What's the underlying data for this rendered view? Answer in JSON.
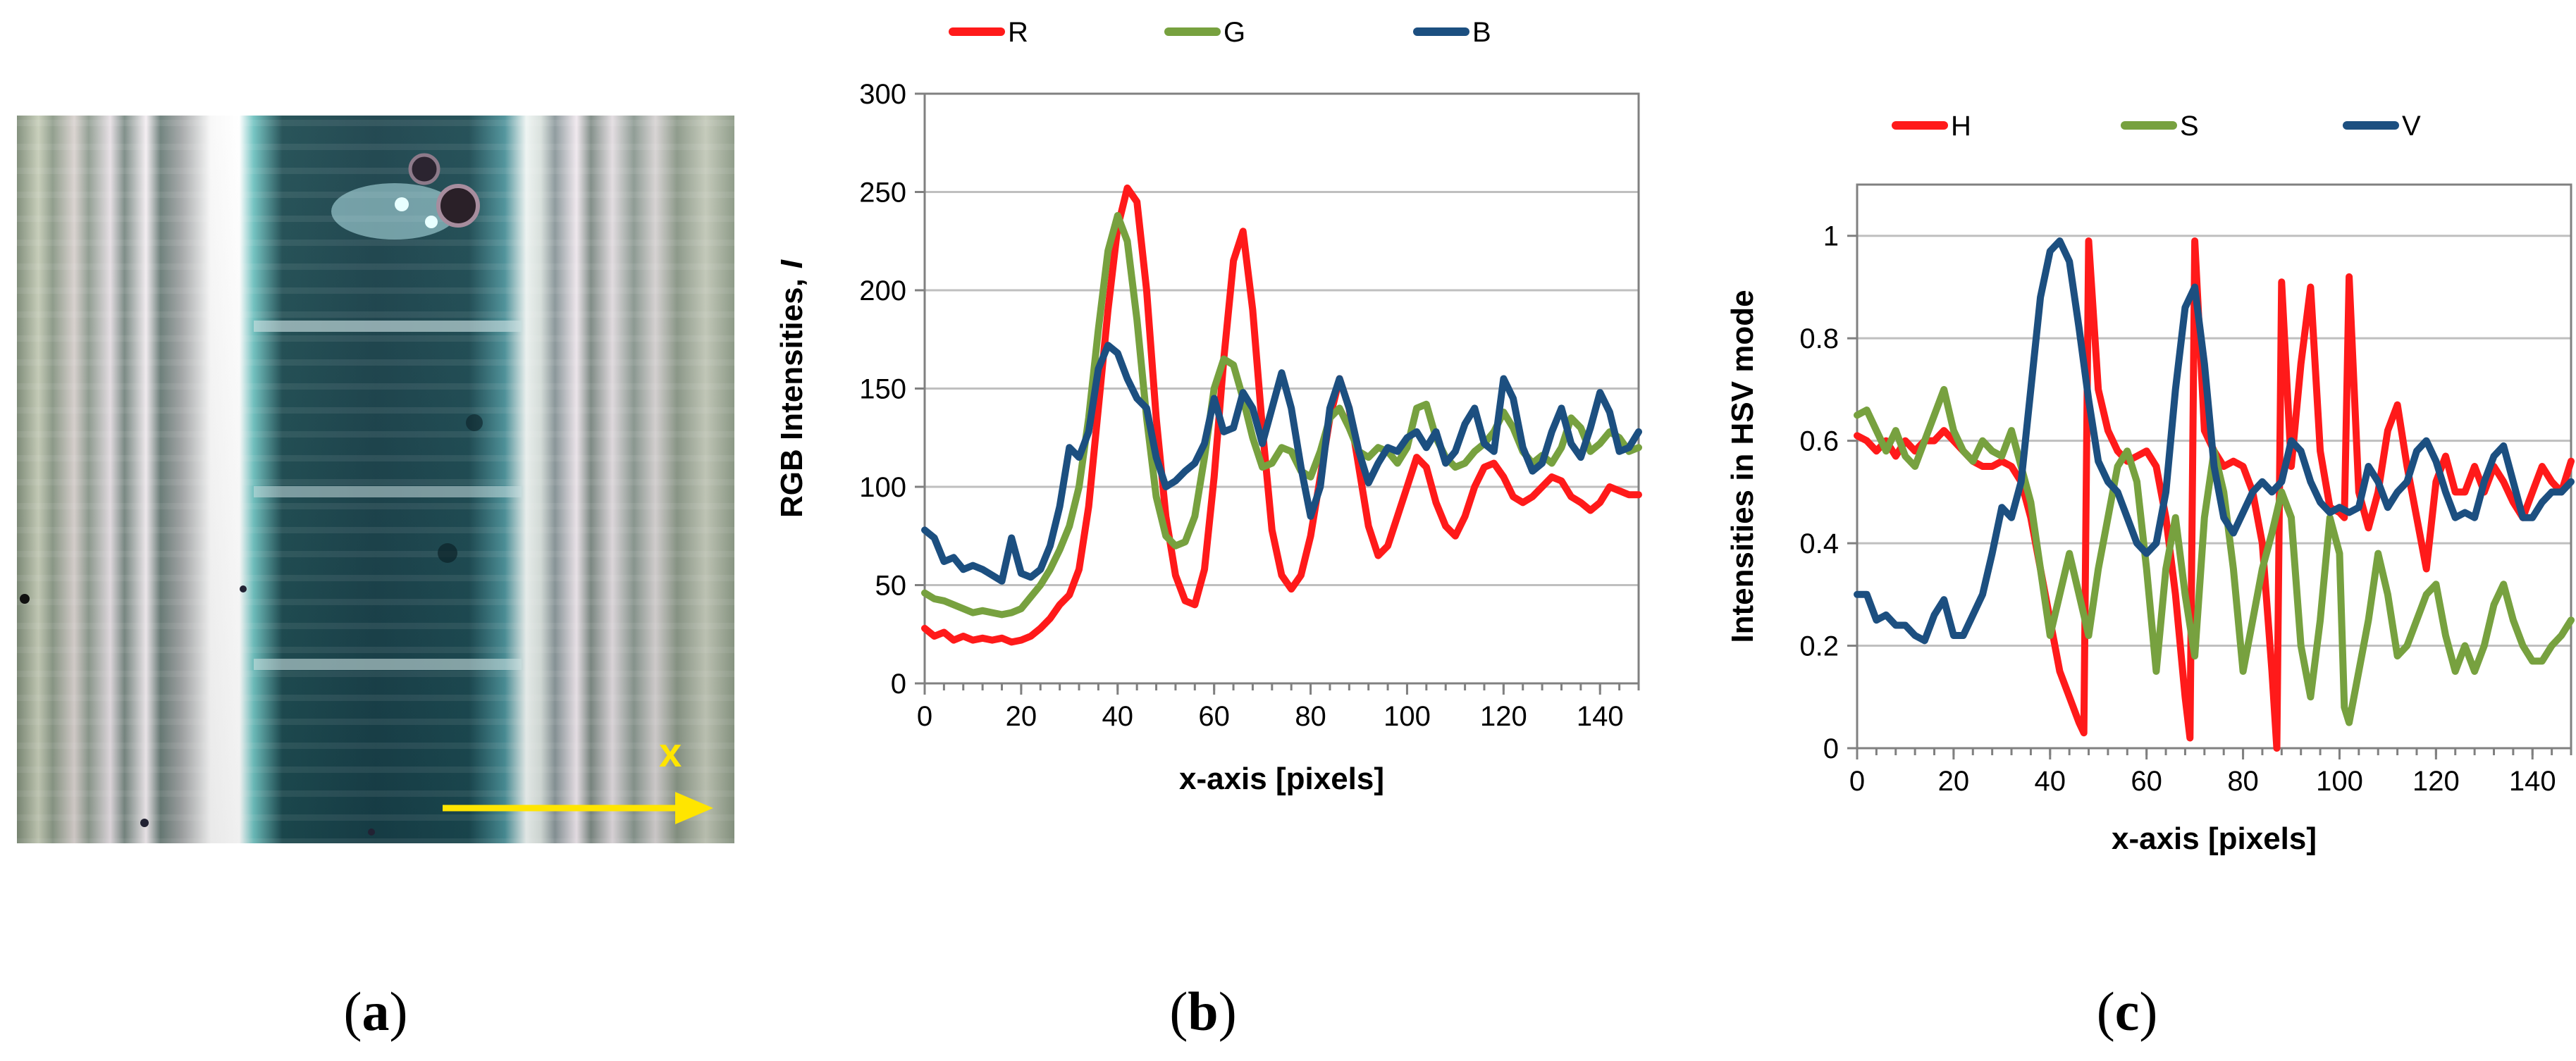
{
  "panels": {
    "a": {
      "caption_letter": "a",
      "x_marker": "x"
    },
    "b": {
      "caption_letter": "b"
    },
    "c": {
      "caption_letter": "c"
    }
  },
  "colors": {
    "red": "#ff1a1a",
    "green": "#77a13f",
    "blue": "#1c4f80",
    "grid": "#bfbfbf",
    "axis": "#808080",
    "yellow": "#ffe500"
  },
  "chart_data": [
    {
      "id": "rgb",
      "type": "line",
      "title": "",
      "xlabel": "x-axis [pixels]",
      "ylabel": "RGB Intensities,",
      "ylabel_symbol": "I",
      "xlim": [
        0,
        148
      ],
      "ylim": [
        0,
        300
      ],
      "xticks": [
        0,
        20,
        40,
        60,
        80,
        100,
        120,
        140
      ],
      "yticks": [
        0,
        50,
        100,
        150,
        200,
        250,
        300
      ],
      "ytick_labels": [
        "0",
        "50",
        "100",
        "150",
        "200",
        "250",
        "300"
      ],
      "legend_position": "top",
      "series": [
        {
          "name": "R",
          "color": "#ff1a1a",
          "x": [
            0,
            2,
            4,
            6,
            8,
            10,
            12,
            14,
            16,
            18,
            20,
            22,
            24,
            26,
            28,
            30,
            32,
            34,
            36,
            38,
            40,
            42,
            44,
            46,
            48,
            50,
            52,
            54,
            56,
            58,
            60,
            62,
            64,
            66,
            68,
            70,
            72,
            74,
            76,
            78,
            80,
            82,
            84,
            86,
            88,
            90,
            92,
            94,
            96,
            98,
            100,
            102,
            104,
            106,
            108,
            110,
            112,
            114,
            116,
            118,
            120,
            122,
            124,
            126,
            128,
            130,
            132,
            134,
            136,
            138,
            140,
            142,
            144,
            146,
            148
          ],
          "y": [
            28,
            24,
            26,
            22,
            24,
            22,
            23,
            22,
            23,
            21,
            22,
            24,
            28,
            33,
            40,
            45,
            58,
            90,
            140,
            190,
            232,
            252,
            245,
            200,
            135,
            85,
            55,
            42,
            40,
            58,
            105,
            165,
            215,
            230,
            190,
            130,
            78,
            55,
            48,
            55,
            75,
            105,
            135,
            155,
            140,
            110,
            80,
            65,
            70,
            85,
            100,
            115,
            110,
            92,
            80,
            75,
            85,
            100,
            110,
            112,
            105,
            95,
            92,
            95,
            100,
            105,
            103,
            95,
            92,
            88,
            92,
            100,
            98,
            96,
            96
          ]
        },
        {
          "name": "G",
          "color": "#77a13f",
          "x": [
            0,
            2,
            4,
            6,
            8,
            10,
            12,
            14,
            16,
            18,
            20,
            22,
            24,
            26,
            28,
            30,
            32,
            34,
            36,
            38,
            40,
            42,
            44,
            46,
            48,
            50,
            52,
            54,
            56,
            58,
            60,
            62,
            64,
            66,
            68,
            70,
            72,
            74,
            76,
            78,
            80,
            82,
            84,
            86,
            88,
            90,
            92,
            94,
            96,
            98,
            100,
            102,
            104,
            106,
            108,
            110,
            112,
            114,
            116,
            118,
            120,
            122,
            124,
            126,
            128,
            130,
            132,
            134,
            136,
            138,
            140,
            142,
            144,
            146,
            148
          ],
          "y": [
            46,
            43,
            42,
            40,
            38,
            36,
            37,
            36,
            35,
            36,
            38,
            44,
            50,
            58,
            68,
            80,
            100,
            135,
            180,
            220,
            238,
            225,
            185,
            135,
            95,
            75,
            70,
            72,
            85,
            115,
            150,
            165,
            162,
            145,
            125,
            110,
            112,
            120,
            118,
            108,
            105,
            118,
            135,
            140,
            130,
            118,
            115,
            120,
            118,
            112,
            120,
            140,
            142,
            125,
            115,
            110,
            112,
            118,
            122,
            128,
            138,
            130,
            118,
            112,
            116,
            112,
            120,
            135,
            130,
            118,
            122,
            128,
            125,
            118,
            120
          ]
        },
        {
          "name": "B",
          "color": "#1c4f80",
          "x": [
            0,
            2,
            4,
            6,
            8,
            10,
            12,
            14,
            16,
            18,
            20,
            22,
            24,
            26,
            28,
            30,
            32,
            34,
            36,
            38,
            40,
            42,
            44,
            46,
            48,
            50,
            52,
            54,
            56,
            58,
            60,
            62,
            64,
            66,
            68,
            70,
            72,
            74,
            76,
            78,
            80,
            82,
            84,
            86,
            88,
            90,
            92,
            94,
            96,
            98,
            100,
            102,
            104,
            106,
            108,
            110,
            112,
            114,
            116,
            118,
            120,
            122,
            124,
            126,
            128,
            130,
            132,
            134,
            136,
            138,
            140,
            142,
            144,
            146,
            148
          ],
          "y": [
            78,
            74,
            62,
            64,
            58,
            60,
            58,
            55,
            52,
            74,
            56,
            54,
            58,
            70,
            90,
            120,
            115,
            128,
            160,
            172,
            168,
            155,
            145,
            140,
            115,
            100,
            103,
            108,
            112,
            122,
            145,
            128,
            130,
            148,
            140,
            122,
            140,
            158,
            140,
            110,
            85,
            100,
            140,
            155,
            140,
            118,
            102,
            112,
            120,
            118,
            125,
            128,
            120,
            128,
            112,
            118,
            132,
            140,
            122,
            118,
            155,
            145,
            120,
            108,
            112,
            128,
            140,
            122,
            115,
            130,
            148,
            138,
            118,
            120,
            128
          ]
        }
      ]
    },
    {
      "id": "hsv",
      "type": "line",
      "title": "",
      "xlabel": "x-axis [pixels]",
      "ylabel": "Intensities  in HSV mode",
      "xlim": [
        0,
        148
      ],
      "ylim": [
        0,
        1.1
      ],
      "xticks": [
        0,
        20,
        40,
        60,
        80,
        100,
        120,
        140
      ],
      "yticks": [
        0,
        0.2,
        0.4,
        0.6,
        0.8,
        1.0
      ],
      "ytick_labels": [
        "0",
        "0.2",
        "0.4",
        "0.6",
        "0.8",
        "1"
      ],
      "legend_position": "top",
      "series": [
        {
          "name": "H",
          "color": "#ff1a1a",
          "x": [
            0,
            2,
            4,
            6,
            8,
            10,
            12,
            14,
            16,
            18,
            20,
            22,
            24,
            26,
            28,
            30,
            32,
            34,
            36,
            38,
            40,
            42,
            44,
            46,
            47,
            48,
            50,
            52,
            54,
            56,
            58,
            60,
            62,
            64,
            66,
            68,
            69,
            70,
            72,
            74,
            76,
            78,
            80,
            82,
            84,
            86,
            87,
            88,
            90,
            92,
            94,
            96,
            98,
            100,
            101,
            102,
            104,
            106,
            108,
            110,
            112,
            114,
            116,
            118,
            120,
            122,
            124,
            126,
            128,
            130,
            132,
            134,
            136,
            138,
            140,
            142,
            144,
            146,
            148
          ],
          "y": [
            0.61,
            0.6,
            0.58,
            0.6,
            0.57,
            0.6,
            0.58,
            0.6,
            0.6,
            0.62,
            0.6,
            0.58,
            0.56,
            0.55,
            0.55,
            0.56,
            0.55,
            0.52,
            0.45,
            0.35,
            0.25,
            0.15,
            0.1,
            0.05,
            0.03,
            0.99,
            0.7,
            0.62,
            0.58,
            0.56,
            0.57,
            0.58,
            0.55,
            0.45,
            0.3,
            0.1,
            0.02,
            0.99,
            0.62,
            0.58,
            0.55,
            0.56,
            0.55,
            0.5,
            0.4,
            0.15,
            0.0,
            0.91,
            0.55,
            0.75,
            0.9,
            0.58,
            0.47,
            0.46,
            0.45,
            0.92,
            0.5,
            0.43,
            0.5,
            0.62,
            0.67,
            0.55,
            0.45,
            0.35,
            0.52,
            0.57,
            0.5,
            0.5,
            0.55,
            0.5,
            0.55,
            0.52,
            0.48,
            0.45,
            0.5,
            0.55,
            0.52,
            0.5,
            0.56
          ]
        },
        {
          "name": "S",
          "color": "#77a13f",
          "x": [
            0,
            2,
            4,
            6,
            8,
            10,
            12,
            14,
            16,
            18,
            20,
            22,
            24,
            26,
            28,
            30,
            32,
            34,
            36,
            38,
            40,
            42,
            44,
            46,
            48,
            50,
            52,
            54,
            56,
            58,
            60,
            62,
            64,
            66,
            68,
            70,
            72,
            74,
            76,
            78,
            80,
            82,
            84,
            86,
            88,
            90,
            92,
            94,
            96,
            98,
            100,
            101,
            102,
            104,
            106,
            108,
            110,
            112,
            114,
            116,
            118,
            120,
            122,
            124,
            126,
            128,
            130,
            132,
            134,
            136,
            138,
            140,
            142,
            144,
            146,
            148
          ],
          "y": [
            0.65,
            0.66,
            0.62,
            0.58,
            0.62,
            0.57,
            0.55,
            0.6,
            0.65,
            0.7,
            0.62,
            0.58,
            0.56,
            0.6,
            0.58,
            0.57,
            0.62,
            0.55,
            0.48,
            0.35,
            0.22,
            0.3,
            0.38,
            0.3,
            0.22,
            0.35,
            0.45,
            0.55,
            0.58,
            0.52,
            0.35,
            0.15,
            0.35,
            0.45,
            0.3,
            0.18,
            0.45,
            0.58,
            0.5,
            0.35,
            0.15,
            0.25,
            0.35,
            0.42,
            0.5,
            0.45,
            0.2,
            0.1,
            0.25,
            0.45,
            0.38,
            0.08,
            0.05,
            0.15,
            0.25,
            0.38,
            0.3,
            0.18,
            0.2,
            0.25,
            0.3,
            0.32,
            0.22,
            0.15,
            0.2,
            0.15,
            0.2,
            0.28,
            0.32,
            0.25,
            0.2,
            0.17,
            0.17,
            0.2,
            0.22,
            0.25
          ]
        },
        {
          "name": "V",
          "color": "#1c4f80",
          "x": [
            0,
            2,
            4,
            6,
            8,
            10,
            12,
            14,
            16,
            18,
            20,
            22,
            24,
            26,
            28,
            30,
            32,
            34,
            36,
            38,
            40,
            42,
            44,
            46,
            48,
            50,
            52,
            54,
            56,
            58,
            60,
            62,
            64,
            66,
            68,
            70,
            72,
            74,
            76,
            78,
            80,
            82,
            84,
            86,
            88,
            90,
            92,
            94,
            96,
            98,
            100,
            102,
            104,
            106,
            108,
            110,
            112,
            114,
            116,
            118,
            120,
            122,
            124,
            126,
            128,
            130,
            132,
            134,
            136,
            138,
            140,
            142,
            144,
            146,
            148
          ],
          "y": [
            0.3,
            0.3,
            0.25,
            0.26,
            0.24,
            0.24,
            0.22,
            0.21,
            0.26,
            0.29,
            0.22,
            0.22,
            0.26,
            0.3,
            0.38,
            0.47,
            0.45,
            0.52,
            0.7,
            0.88,
            0.97,
            0.99,
            0.95,
            0.82,
            0.68,
            0.56,
            0.52,
            0.5,
            0.45,
            0.4,
            0.38,
            0.4,
            0.5,
            0.7,
            0.86,
            0.9,
            0.75,
            0.55,
            0.45,
            0.42,
            0.46,
            0.5,
            0.52,
            0.5,
            0.52,
            0.6,
            0.58,
            0.52,
            0.48,
            0.46,
            0.47,
            0.46,
            0.47,
            0.55,
            0.52,
            0.47,
            0.5,
            0.52,
            0.58,
            0.6,
            0.56,
            0.5,
            0.45,
            0.46,
            0.45,
            0.52,
            0.57,
            0.59,
            0.52,
            0.45,
            0.45,
            0.48,
            0.5,
            0.5,
            0.52
          ]
        }
      ]
    }
  ]
}
